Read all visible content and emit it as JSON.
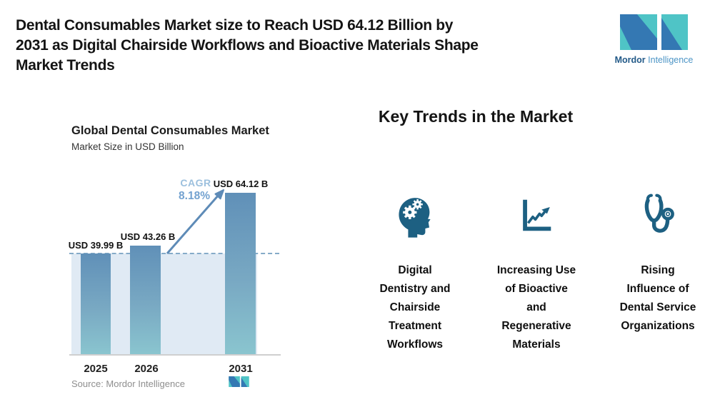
{
  "page": {
    "title": "Dental Consumables Market size to Reach USD 64.12 Billion by\n2031 as Digital Chairside Workflows and Bioactive Materials Shape\nMarket Trends"
  },
  "brand": {
    "name_bold": "Mordor",
    "name_light": "Intelligence"
  },
  "chart_data": {
    "type": "bar",
    "title": "Global Dental Consumables Market",
    "subtitle": "Market Size in USD Billion",
    "categories": [
      "2025",
      "2026",
      "2031"
    ],
    "values": [
      39.99,
      43.26,
      64.12
    ],
    "bar_labels": [
      "USD 39.99 B",
      "USD 43.26 B",
      "USD 64.12 B"
    ],
    "unit": "USD Billion",
    "ylim": [
      0,
      64.12
    ],
    "grid": false,
    "legend": "none",
    "cagr_label": "CAGR",
    "cagr_value": "8.18%",
    "annotations": [
      "Dashed reference line at 2025 market size level",
      "Growth arrow from 2026 bar to 2031 bar labelled CAGR 8.18%"
    ],
    "source": "Source: Mordor Intelligence"
  },
  "trends": {
    "heading": "Key Trends in the Market",
    "items": [
      {
        "icon": "head-gears-icon",
        "label": "Digital\nDentistry and\nChairside\nTreatment\nWorkflows"
      },
      {
        "icon": "growth-chart-icon",
        "label": "Increasing Use\nof Bioactive\nand\nRegenerative\nMaterials"
      },
      {
        "icon": "stethoscope-icon",
        "label": "Rising\nInfluence of\nDental Service\nOrganizations"
      }
    ]
  },
  "colors": {
    "icon_teal": "#1d6082",
    "bar_top": "#6090b8",
    "bar_bottom": "#8ac5cf",
    "band_light_blue": "#e0eaf4",
    "dashed_line": "#85abc8",
    "arrow_blue": "#5e8bb7",
    "cagr_text": "#73a2d0",
    "logo_blue": "#3478b3",
    "logo_teal": "#4fc4c6",
    "source_gray": "#8e8e8e"
  }
}
